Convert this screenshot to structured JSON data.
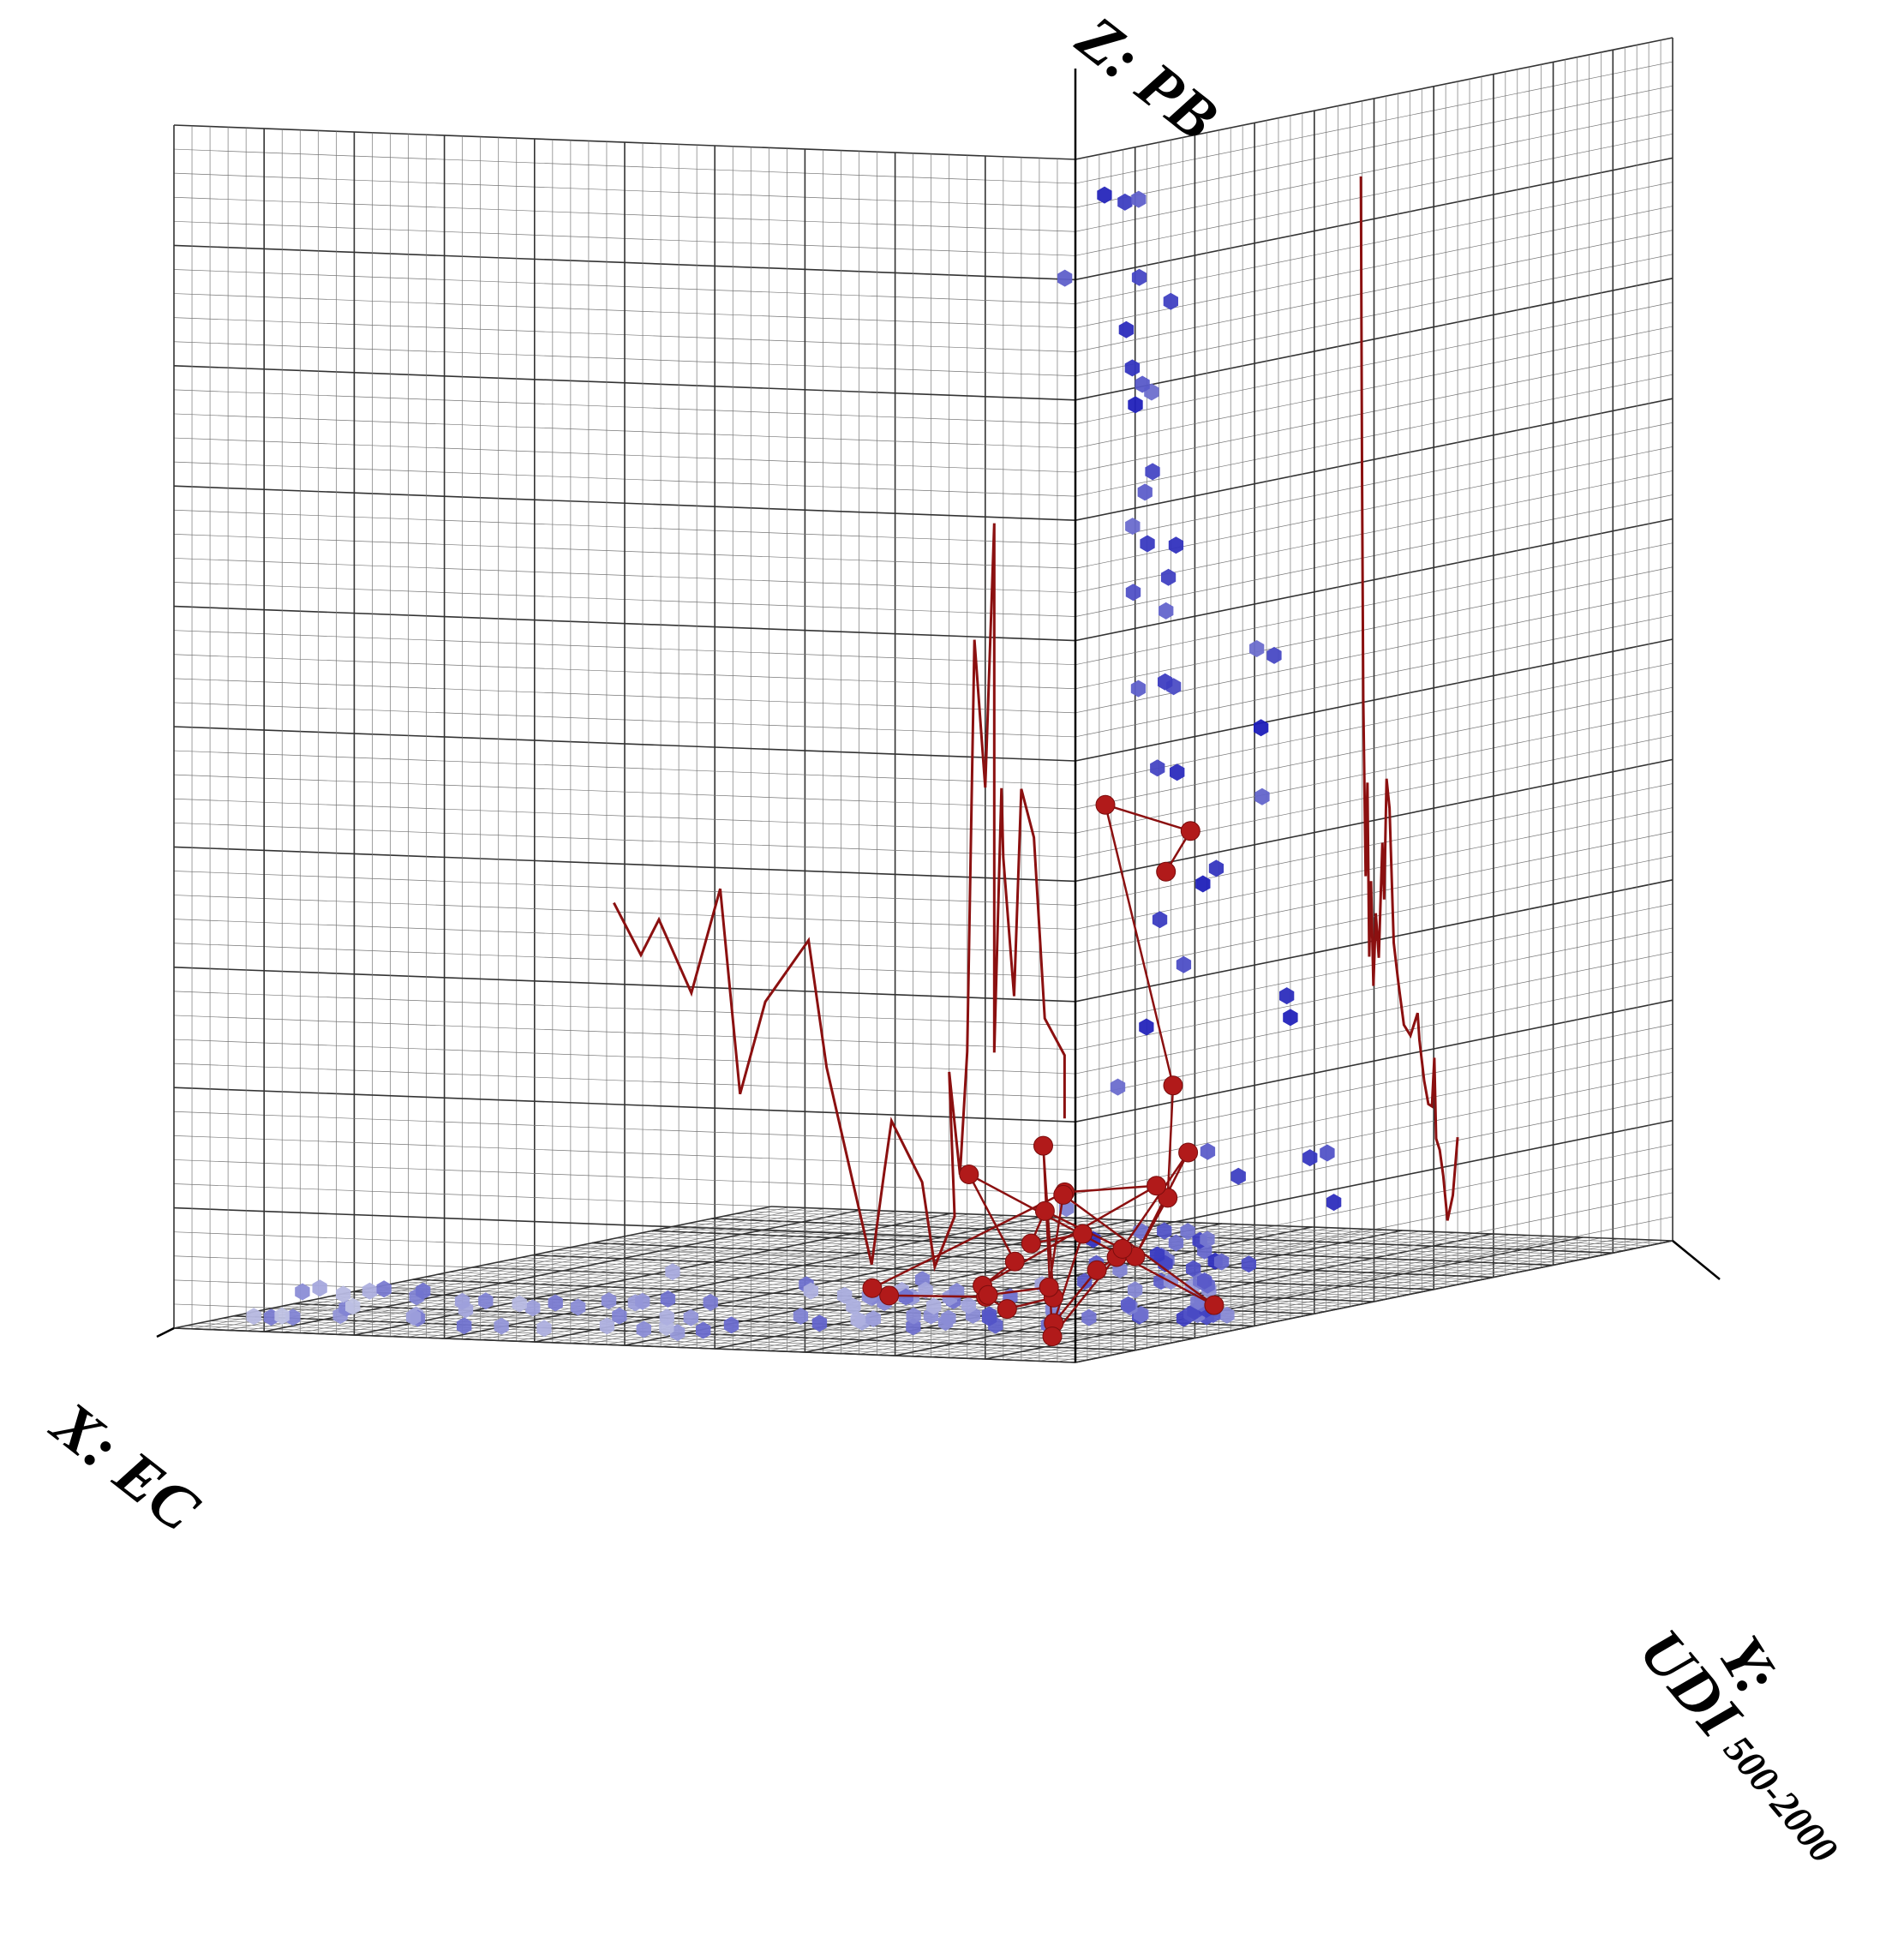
{
  "chart_data": {
    "type": "scatter",
    "title": "",
    "axes": {
      "x": {
        "label": "X: EC"
      },
      "y": {
        "label": "Y:",
        "label2": "UDI",
        "label_sub": "500-2000"
      },
      "z": {
        "label": "Z: PB"
      }
    },
    "grid": true,
    "colors": {
      "pareto": "#b11a1a",
      "pareto_line": "#8b1010",
      "cloud_dark": "#1a1ab8",
      "cloud_light": "#c8cbe6",
      "grid": "#777777",
      "axis": "#000000"
    },
    "series": [
      {
        "kind": "cloud",
        "points": [
          [
            0.3,
            9.2,
            38.2
          ],
          [
            1.5,
            9.4,
            38.4
          ],
          [
            0.3,
            11.5,
            38.2
          ],
          [
            0.3,
            11.6,
            35.6
          ],
          [
            3.6,
            9.1,
            35.6
          ],
          [
            1.6,
            20.8,
            34.4
          ],
          [
            4.1,
            20.9,
            33.4
          ],
          [
            2.4,
            20.0,
            31.4
          ],
          [
            3.0,
            19.1,
            31.0
          ],
          [
            4.0,
            21.6,
            32.1
          ],
          [
            2.5,
            19.2,
            28.1
          ],
          [
            2.3,
            19.0,
            26.4
          ],
          [
            1.2,
            19.2,
            25.3
          ],
          [
            4.6,
            25.1,
            31.4
          ],
          [
            4.1,
            25.3,
            28.5
          ],
          [
            2.7,
            25.0,
            26.1
          ],
          [
            0.8,
            12.0,
            27.3
          ],
          [
            0.8,
            12.1,
            25.1
          ],
          [
            1.9,
            20.9,
            24.1
          ],
          [
            3.3,
            20.5,
            21.5
          ],
          [
            2.8,
            24.9,
            21.4
          ],
          [
            4.3,
            28.0,
            21.4
          ],
          [
            1.0,
            34.1,
            19.7
          ],
          [
            2.1,
            36.7,
            22.2
          ],
          [
            1.1,
            36.6,
            22.0
          ],
          [
            3.7,
            28.2,
            18.4
          ],
          [
            2.4,
            28.6,
            14.7
          ],
          [
            3.4,
            28.4,
            12.0
          ],
          [
            1.7,
            36.4,
            17.3
          ],
          [
            0.5,
            25.1,
            15.4
          ],
          [
            0.1,
            36.3,
            10.0
          ],
          [
            0.4,
            36.6,
            10.7
          ],
          [
            3.5,
            24.3,
            18.7
          ],
          [
            0.5,
            13.4,
            10.6
          ],
          [
            3.1,
            23.5,
            13.7
          ],
          [
            1.5,
            43.8,
            5.0
          ],
          [
            1.2,
            46.9,
            3.4
          ],
          [
            1.8,
            47.6,
            5.0
          ],
          [
            0.6,
            29.1,
            5.0
          ],
          [
            2.2,
            28.8,
            5.8
          ],
          [
            5.3,
            23.1,
            8.1
          ],
          [
            2.6,
            23.2,
            4.5
          ],
          [
            3.6,
            21.8,
            3.4
          ],
          [
            2.7,
            25.0,
            2.9
          ],
          [
            3.8,
            25.9,
            2.4
          ],
          [
            2.6,
            23.2,
            2.4
          ],
          [
            3.7,
            32.8,
            2.3
          ],
          [
            4.2,
            33.5,
            2.6
          ],
          [
            4.8,
            33.3,
            2.9
          ],
          [
            6.0,
            33.0,
            2.9
          ],
          [
            5.0,
            38.5,
            1.7
          ],
          [
            3.4,
            39.3,
            1.6
          ],
          [
            6.2,
            40.8,
            2.3
          ],
          [
            8.4,
            45.1,
            1.1
          ],
          [
            10.5,
            45.4,
            1.5
          ],
          [
            11.5,
            37.7,
            2.3
          ],
          [
            7.4,
            37.4,
            1.6
          ],
          [
            3.6,
            25.2,
            1.6
          ],
          [
            2.3,
            25.1,
            0.4
          ],
          [
            3.0,
            28.4,
            0.4
          ],
          [
            1.0,
            28.4,
            0.4
          ],
          [
            10.9,
            31.4,
            3.6
          ],
          [
            6.6,
            44.4,
            1.4
          ],
          [
            9.2,
            47.3,
            0.4
          ],
          [
            11.1,
            43.5,
            0.4
          ],
          [
            13.0,
            46.7,
            0.9
          ],
          [
            15.5,
            50.3,
            0.9
          ],
          [
            11.4,
            50.4,
            0.4
          ],
          [
            9.9,
            51.5,
            0.4
          ],
          [
            10.1,
            51.4,
            0.4
          ],
          [
            8.8,
            48.7,
            0.4
          ],
          [
            7.7,
            45.6,
            0.4
          ],
          [
            14.0,
            43.8,
            0.6
          ],
          [
            14.6,
            38.5,
            0.7
          ],
          [
            16.7,
            39.5,
            0.2
          ],
          [
            22.1,
            32.2,
            0.4
          ],
          [
            18.5,
            28.5,
            0.6
          ],
          [
            18.0,
            33.3,
            0.4
          ],
          [
            19.8,
            30.7,
            0.7
          ],
          [
            20.5,
            24.7,
            0.4
          ],
          [
            16.5,
            24.2,
            1.4
          ],
          [
            24.2,
            28.0,
            0.9
          ],
          [
            28.6,
            18.9,
            1.6
          ],
          [
            26.0,
            17.4,
            0.7
          ],
          [
            28.1,
            16.6,
            0.8
          ],
          [
            20.7,
            16.5,
            0.4
          ],
          [
            35.1,
            15.1,
            0.4
          ],
          [
            25.5,
            12.6,
            0.4
          ],
          [
            29.2,
            11.8,
            0.4
          ],
          [
            26.7,
            12.2,
            0.4
          ],
          [
            30.4,
            8.5,
            0.8
          ],
          [
            36.5,
            8.1,
            0.6
          ],
          [
            42.5,
            7.3,
            0.6
          ],
          [
            42.4,
            5.9,
            0.6
          ],
          [
            42.4,
            4.9,
            0.4
          ],
          [
            38.6,
            5.7,
            0.4
          ],
          [
            38.1,
            4.9,
            0.4
          ],
          [
            37.6,
            3.1,
            0.6
          ],
          [
            34.2,
            0.9,
            0.4
          ],
          [
            32.4,
            1.7,
            0.4
          ],
          [
            29.9,
            1.3,
            0.4
          ],
          [
            45.0,
            3.0,
            0.4
          ],
          [
            45.2,
            1.8,
            0.4
          ],
          [
            46.2,
            1.9,
            0.4
          ],
          [
            44.2,
            2.4,
            0.4
          ],
          [
            39.9,
            17.8,
            0.4
          ],
          [
            38.9,
            18.7,
            0.4
          ],
          [
            43.1,
            19.8,
            0.4
          ],
          [
            47.1,
            19.6,
            0.4
          ],
          [
            46.6,
            22.5,
            0.4
          ],
          [
            49.6,
            23.2,
            0.4
          ],
          [
            49.6,
            20.3,
            0.4
          ],
          [
            44.1,
            23.9,
            0.4
          ],
          [
            46.4,
            24.3,
            0.4
          ],
          [
            5.5,
            37.1,
            0.4
          ],
          [
            19.9,
            28.1,
            0.4
          ],
          [
            17.1,
            31.2,
            0.4
          ],
          [
            15.3,
            28.3,
            0.4
          ],
          [
            16.8,
            27.0,
            0.4
          ],
          [
            31.5,
            22.6,
            0.4
          ],
          [
            31.5,
            21.4,
            0.4
          ],
          [
            33.2,
            22.1,
            0.4
          ],
          [
            35.2,
            19.2,
            0.4
          ],
          [
            36.7,
            17.7,
            0.4
          ],
          [
            20.8,
            37.7,
            0.4
          ],
          [
            19.1,
            37.8,
            0.4
          ],
          [
            26.0,
            34.2,
            0.4
          ],
          [
            23.4,
            32.0,
            0.4
          ],
          [
            21.6,
            31.1,
            0.4
          ],
          [
            21.8,
            31.9,
            0.4
          ],
          [
            20.2,
            32.6,
            0.4
          ],
          [
            14.7,
            20.2,
            0.4
          ],
          [
            15.5,
            19.7,
            0.4
          ],
          [
            12.5,
            16.0,
            0.4
          ],
          [
            10.4,
            27.6,
            0.4
          ],
          [
            8.0,
            33.0,
            0.4
          ],
          [
            7.4,
            31.5,
            0.4
          ],
          [
            4.9,
            35.9,
            0.4
          ],
          [
            3.3,
            31.9,
            0.4
          ],
          [
            3.4,
            30.2,
            0.4
          ],
          [
            2.5,
            28.0,
            0.4
          ],
          [
            4.9,
            25.5,
            0.4
          ],
          [
            5.2,
            26.7,
            0.4
          ],
          [
            1.8,
            28.5,
            0.4
          ],
          [
            1.6,
            26.8,
            0.4
          ],
          [
            6.9,
            23.1,
            0.4
          ],
          [
            8.7,
            22.7,
            0.4
          ],
          [
            7.1,
            16.9,
            0.4
          ],
          [
            9.5,
            15.3,
            0.4
          ],
          [
            12.2,
            22.4,
            0.4
          ],
          [
            12.9,
            21.8,
            0.4
          ],
          [
            11.5,
            20.3,
            0.4
          ],
          [
            13.3,
            18.9,
            0.4
          ],
          [
            16.7,
            16.6,
            0.4
          ],
          [
            17.2,
            15.5,
            0.4
          ],
          [
            16.5,
            14.1,
            0.4
          ],
          [
            13.0,
            12.1,
            0.4
          ],
          [
            18.2,
            12.1,
            0.4
          ],
          [
            21.9,
            8.5,
            0.4
          ],
          [
            24.4,
            5.2,
            0.4
          ],
          [
            27.5,
            4.6,
            0.4
          ],
          [
            25.0,
            3.2,
            0.4
          ],
          [
            22.7,
            1.9,
            0.4
          ],
          [
            22.0,
            4.1,
            0.4
          ]
        ]
      },
      {
        "kind": "pareto-front",
        "points": [
          [
            2.1,
            21.5,
            15.4
          ],
          [
            2.0,
            25.3,
            16.6
          ],
          [
            4.4,
            18.3,
            17.7
          ],
          [
            2.4,
            23.6,
            8.2
          ],
          [
            2.4,
            22.7,
            4.5
          ],
          [
            3.6,
            20.9,
            2.6
          ],
          [
            0.8,
            21.3,
            6.1
          ],
          [
            5.0,
            22.0,
            2.5
          ],
          [
            5.0,
            18.7,
            2.2
          ],
          [
            7.3,
            18.4,
            0.4
          ],
          [
            4.3,
            14.2,
            3.6
          ],
          [
            6.6,
            12.5,
            3.3
          ],
          [
            5.8,
            12.4,
            4.4
          ],
          [
            1.1,
            11.2,
            3.3
          ],
          [
            4.3,
            9.1,
            0.4
          ],
          [
            4.3,
            7.6,
            6.8
          ],
          [
            9.0,
            23.5,
            1.0
          ],
          [
            12.7,
            26.9,
            0.4
          ],
          [
            15.1,
            30.6,
            0.6
          ],
          [
            21.3,
            33.1,
            0.4
          ],
          [
            22.4,
            33.6,
            0.6
          ],
          [
            14.7,
            42.6,
            3.6
          ],
          [
            11.9,
            49.5,
            3.6
          ],
          [
            19.2,
            42.4,
            0.4
          ],
          [
            18.4,
            45.4,
            1.1
          ],
          [
            22.6,
            50.4,
            3.7
          ],
          [
            3.9,
            35.0,
            0.4
          ],
          [
            12.8,
            36.6,
            3.8
          ],
          [
            11.6,
            30.6,
            1.0
          ],
          [
            16.8,
            36.1,
            0.4
          ]
        ]
      }
    ],
    "projections": {
      "back_zx": [
        [
          0.6,
          8.1
        ],
        [
          0.6,
          10.2
        ],
        [
          1.7,
          11.4
        ],
        [
          2.3,
          17.4
        ],
        [
          3.0,
          19.0
        ],
        [
          3.4,
          12.1
        ],
        [
          4.0,
          16.7
        ],
        [
          4.1,
          19.0
        ],
        [
          4.5,
          10.2
        ],
        [
          4.5,
          27.8
        ],
        [
          5.0,
          19.0
        ],
        [
          5.6,
          23.9
        ],
        [
          6.0,
          10.2
        ],
        [
          6.4,
          6.1
        ],
        [
          7.0,
          9.5
        ],
        [
          6.7,
          4.7
        ],
        [
          7.8,
          3.0
        ],
        [
          8.5,
          5.8
        ],
        [
          10.2,
          7.8
        ],
        [
          10.6,
          6.1
        ],
        [
          11.3,
          3.0
        ],
        [
          13.8,
          9.5
        ],
        [
          14.8,
          13.7
        ],
        [
          17.2,
          11.6
        ],
        [
          18.6,
          8.5
        ],
        [
          19.7,
          15.3
        ],
        [
          21.3,
          11.8
        ],
        [
          23.1,
          14.2
        ],
        [
          24.1,
          13.0
        ],
        [
          25.6,
          14.7
        ]
      ],
      "right_zy": [
        [
          47.8,
          37.5
        ],
        [
          48.0,
          27.4
        ],
        [
          48.2,
          20.1
        ],
        [
          48.6,
          14.2
        ],
        [
          48.9,
          17.3
        ],
        [
          49.2,
          11.5
        ],
        [
          49.5,
          14.0
        ],
        [
          49.9,
          10.5
        ],
        [
          50.3,
          12.9
        ],
        [
          50.8,
          11.4
        ],
        [
          51.4,
          15.2
        ],
        [
          51.7,
          13.3
        ],
        [
          52.1,
          17.3
        ],
        [
          52.6,
          16.3
        ],
        [
          53.3,
          11.8
        ],
        [
          54.1,
          10.4
        ],
        [
          55.0,
          9.0
        ],
        [
          56.1,
          8.6
        ],
        [
          57.3,
          9.3
        ],
        [
          57.6,
          8.4
        ],
        [
          58.4,
          7.0
        ],
        [
          59.1,
          6.2
        ],
        [
          59.7,
          6.1
        ],
        [
          60.1,
          7.7
        ],
        [
          60.4,
          5.0
        ],
        [
          61.0,
          4.6
        ],
        [
          61.6,
          3.7
        ],
        [
          62.3,
          2.2
        ],
        [
          63.2,
          3.0
        ],
        [
          64.0,
          4.9
        ]
      ]
    }
  }
}
